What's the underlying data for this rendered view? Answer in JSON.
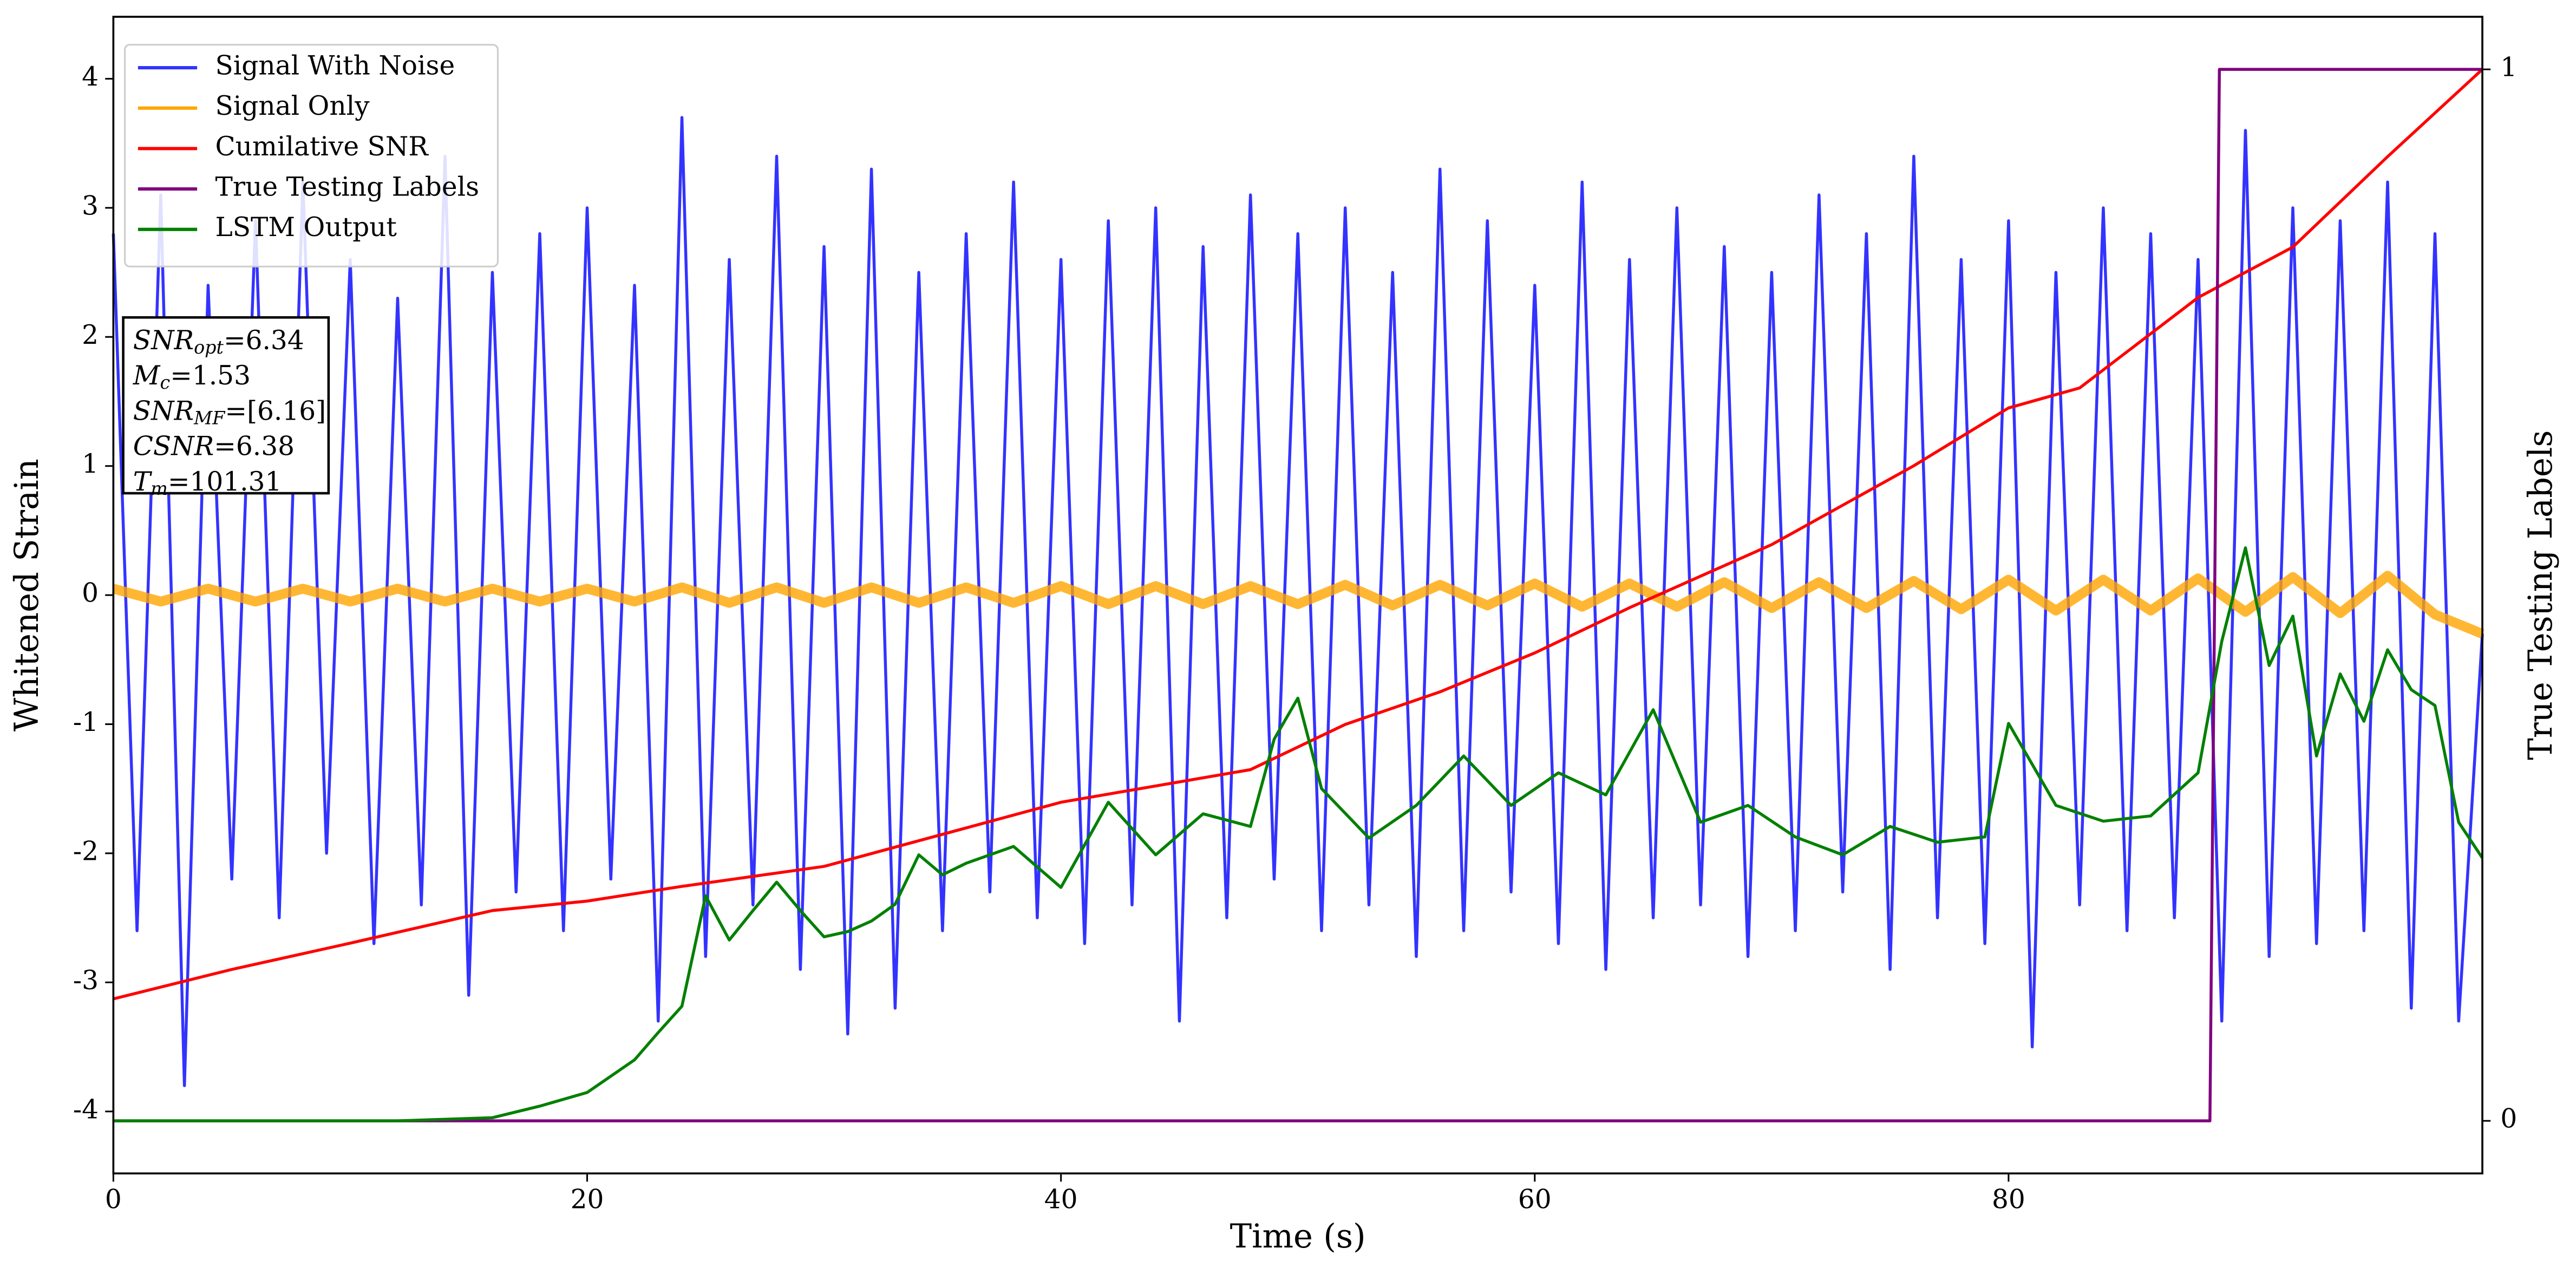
{
  "chart_data": {
    "type": "line",
    "xlabel": "Time (s)",
    "ylabel": "Whitened Strain",
    "y2label": "True Testing Labels",
    "xlim": [
      0,
      100
    ],
    "ylim": [
      -4.48,
      4.48
    ],
    "y2lim": [
      -0.05,
      1.05
    ],
    "xticks": [
      0,
      20,
      40,
      60,
      80
    ],
    "yticks": [
      -4,
      -3,
      -2,
      -1,
      0,
      1,
      2,
      3,
      4
    ],
    "y2ticks": [
      0,
      1
    ],
    "legend": "upper left",
    "annotation": [
      {
        "main": "SNR",
        "sub": "opt",
        "rest": "=6.34"
      },
      {
        "main": "M",
        "sub": "c",
        "rest": "=1.53"
      },
      {
        "main": "SNR",
        "sub": "MF",
        "rest": "=[6.16]"
      },
      {
        "main": "CSNR",
        "sub": null,
        "rest": "=6.38"
      },
      {
        "main": "T",
        "sub": "m",
        "rest": "=101.31"
      }
    ],
    "series": [
      {
        "name": "Signal With Noise",
        "color": "#3333ff",
        "x": [
          0,
          1,
          2,
          3,
          4,
          5,
          6,
          7,
          8,
          9,
          10,
          11,
          12,
          13,
          14,
          15,
          16,
          17,
          18,
          19,
          20,
          21,
          22,
          23,
          24,
          25,
          26,
          27,
          28,
          29,
          30,
          31,
          32,
          33,
          34,
          35,
          36,
          37,
          38,
          39,
          40,
          41,
          42,
          43,
          44,
          45,
          46,
          47,
          48,
          49,
          50,
          51,
          52,
          53,
          54,
          55,
          56,
          57,
          58,
          59,
          60,
          61,
          62,
          63,
          64,
          65,
          66,
          67,
          68,
          69,
          70,
          71,
          72,
          73,
          74,
          75,
          76,
          77,
          78,
          79,
          80,
          81,
          82,
          83,
          84,
          85,
          86,
          87,
          88,
          89,
          90,
          91,
          92,
          93,
          94,
          95,
          96,
          97,
          98,
          99,
          100
        ],
        "values": [
          2.8,
          -2.6,
          3.1,
          -3.8,
          2.4,
          -2.2,
          2.9,
          -2.5,
          3.2,
          -2.0,
          2.6,
          -2.7,
          2.3,
          -2.4,
          3.4,
          -3.1,
          2.5,
          -2.3,
          2.8,
          -2.6,
          3.0,
          -2.2,
          2.4,
          -3.3,
          3.7,
          -2.8,
          2.6,
          -2.4,
          3.4,
          -2.9,
          2.7,
          -3.4,
          3.3,
          -3.2,
          2.5,
          -2.6,
          2.8,
          -2.3,
          3.2,
          -2.5,
          2.6,
          -2.7,
          2.9,
          -2.4,
          3.0,
          -3.3,
          2.7,
          -2.5,
          3.1,
          -2.2,
          2.8,
          -2.6,
          3.0,
          -2.4,
          2.5,
          -2.8,
          3.3,
          -2.6,
          2.9,
          -2.3,
          2.4,
          -2.7,
          3.2,
          -2.9,
          2.6,
          -2.5,
          3.0,
          -2.4,
          2.7,
          -2.8,
          2.5,
          -2.6,
          3.1,
          -2.3,
          2.8,
          -2.9,
          3.4,
          -2.5,
          2.6,
          -2.7,
          2.9,
          -3.5,
          2.5,
          -2.4,
          3.0,
          -2.6,
          2.8,
          -2.5,
          2.6,
          -3.3,
          3.6,
          -2.8,
          3.0,
          -2.7,
          2.9,
          -2.6,
          3.2,
          -3.2,
          2.8,
          -3.3,
          -0.3
        ]
      },
      {
        "name": "Signal Only",
        "color": "#ffa500",
        "x": [
          0,
          2,
          4,
          6,
          8,
          10,
          12,
          14,
          16,
          18,
          20,
          22,
          24,
          26,
          28,
          30,
          32,
          34,
          36,
          38,
          40,
          42,
          44,
          46,
          48,
          50,
          52,
          54,
          56,
          58,
          60,
          62,
          64,
          66,
          68,
          70,
          72,
          74,
          76,
          78,
          80,
          82,
          84,
          86,
          88,
          90,
          92,
          94,
          96,
          98,
          100
        ],
        "values": [
          0.05,
          -0.05,
          0.05,
          -0.05,
          0.05,
          -0.05,
          0.05,
          -0.05,
          0.05,
          -0.05,
          0.05,
          -0.05,
          0.06,
          -0.06,
          0.06,
          -0.06,
          0.06,
          -0.06,
          0.06,
          -0.06,
          0.07,
          -0.07,
          0.07,
          -0.07,
          0.07,
          -0.07,
          0.08,
          -0.08,
          0.08,
          -0.08,
          0.09,
          -0.09,
          0.09,
          -0.09,
          0.1,
          -0.1,
          0.1,
          -0.1,
          0.11,
          -0.11,
          0.12,
          -0.12,
          0.12,
          -0.12,
          0.13,
          -0.13,
          0.14,
          -0.14,
          0.15,
          -0.15,
          -0.3
        ]
      },
      {
        "name": "Cumilative SNR",
        "color": "#ff0000",
        "axis": "y2",
        "x": [
          0,
          5,
          10,
          16,
          20,
          24,
          30,
          40,
          48,
          52,
          56,
          60,
          64,
          70,
          76,
          80,
          83,
          88,
          92,
          96,
          100
        ],
        "values": [
          0.116,
          0.144,
          0.169,
          0.2,
          0.209,
          0.223,
          0.242,
          0.303,
          0.334,
          0.377,
          0.408,
          0.445,
          0.488,
          0.548,
          0.623,
          0.678,
          0.697,
          0.783,
          0.831,
          0.917,
          1.0
        ]
      },
      {
        "name": "True Testing Labels",
        "color": "#800080",
        "axis": "y2",
        "x": [
          0,
          88.5,
          88.9,
          100
        ],
        "values": [
          0,
          0,
          1,
          1
        ]
      },
      {
        "name": "LSTM Output",
        "color": "#008000",
        "axis": "y2",
        "x": [
          0,
          12,
          16,
          18,
          20,
          22,
          23,
          24,
          25,
          26,
          27,
          28,
          29,
          30,
          31,
          32,
          33,
          34,
          35,
          36,
          38,
          40,
          42,
          44,
          46,
          48,
          49,
          50,
          51,
          53,
          55,
          57,
          59,
          61,
          63,
          65,
          67,
          69,
          71,
          73,
          75,
          77,
          79,
          80,
          82,
          84,
          86,
          88,
          89,
          90,
          91,
          92,
          93,
          94,
          95,
          96,
          97,
          98,
          99,
          100
        ],
        "values": [
          0,
          0,
          0.003,
          0.014,
          0.027,
          0.058,
          0.084,
          0.109,
          0.214,
          0.172,
          0.2,
          0.227,
          0.2,
          0.175,
          0.18,
          0.19,
          0.206,
          0.253,
          0.234,
          0.245,
          0.261,
          0.222,
          0.303,
          0.253,
          0.292,
          0.28,
          0.363,
          0.402,
          0.316,
          0.269,
          0.3,
          0.347,
          0.3,
          0.331,
          0.31,
          0.391,
          0.284,
          0.3,
          0.27,
          0.253,
          0.28,
          0.265,
          0.27,
          0.378,
          0.3,
          0.285,
          0.29,
          0.331,
          0.456,
          0.545,
          0.433,
          0.48,
          0.347,
          0.425,
          0.38,
          0.448,
          0.41,
          0.395,
          0.284,
          0.25
        ]
      }
    ]
  }
}
